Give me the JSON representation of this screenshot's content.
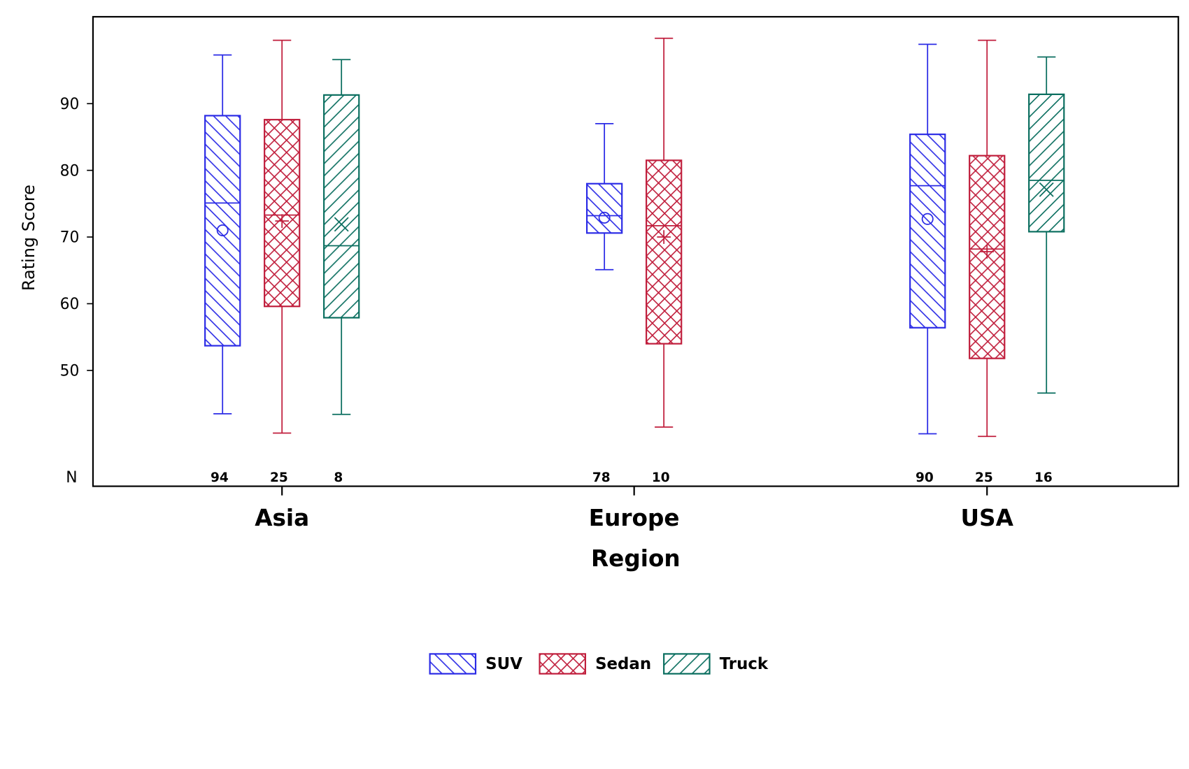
{
  "chart_data": {
    "type": "box",
    "xlabel": "Region",
    "ylabel": "Rating Score",
    "ylim": [
      32.6,
      103
    ],
    "yticks": [
      50,
      60,
      70,
      80,
      90
    ],
    "n_label": "N",
    "categories": [
      "Asia",
      "Europe",
      "USA"
    ],
    "legend_position": "bottom",
    "grid": false,
    "series": [
      {
        "name": "SUV",
        "color": "#2b2be6",
        "pattern": "diagonal-down",
        "mean_marker": "circle"
      },
      {
        "name": "Sedan",
        "color": "#c01e3c",
        "pattern": "crosshatch",
        "mean_marker": "plus"
      },
      {
        "name": "Truck",
        "color": "#0a6e5f",
        "pattern": "diagonal-up",
        "mean_marker": "x"
      }
    ],
    "boxes": [
      {
        "category": "Asia",
        "series": "SUV",
        "min": 43.5,
        "q1": 53.7,
        "median": 75.1,
        "q3": 88.2,
        "max": 97.3,
        "mean": 71.0,
        "n": "94"
      },
      {
        "category": "Asia",
        "series": "Sedan",
        "min": 40.6,
        "q1": 59.6,
        "median": 73.3,
        "q3": 87.6,
        "max": 99.5,
        "mean": 72.4,
        "n": "25"
      },
      {
        "category": "Asia",
        "series": "Truck",
        "min": 43.4,
        "q1": 57.9,
        "median": 68.7,
        "q3": 91.3,
        "max": 96.6,
        "mean": 71.9,
        "n": "8"
      },
      {
        "category": "Europe",
        "series": "SUV",
        "min": 65.1,
        "q1": 70.6,
        "median": 73.2,
        "q3": 78.0,
        "max": 87.0,
        "mean": 72.9,
        "n": "78"
      },
      {
        "category": "Europe",
        "series": "Sedan",
        "min": 41.5,
        "q1": 54.0,
        "median": 71.7,
        "q3": 81.5,
        "max": 99.8,
        "mean": 70.0,
        "n": "10"
      },
      {
        "category": "USA",
        "series": "SUV",
        "min": 40.5,
        "q1": 56.4,
        "median": 77.7,
        "q3": 85.4,
        "max": 98.9,
        "mean": 72.7,
        "n": "90"
      },
      {
        "category": "USA",
        "series": "Sedan",
        "min": 40.1,
        "q1": 51.8,
        "median": 68.2,
        "q3": 82.2,
        "max": 99.5,
        "mean": 67.8,
        "n": "25"
      },
      {
        "category": "USA",
        "series": "Truck",
        "min": 46.6,
        "q1": 70.8,
        "median": 78.5,
        "q3": 91.4,
        "max": 97.0,
        "mean": 77.1,
        "n": "16"
      }
    ]
  }
}
